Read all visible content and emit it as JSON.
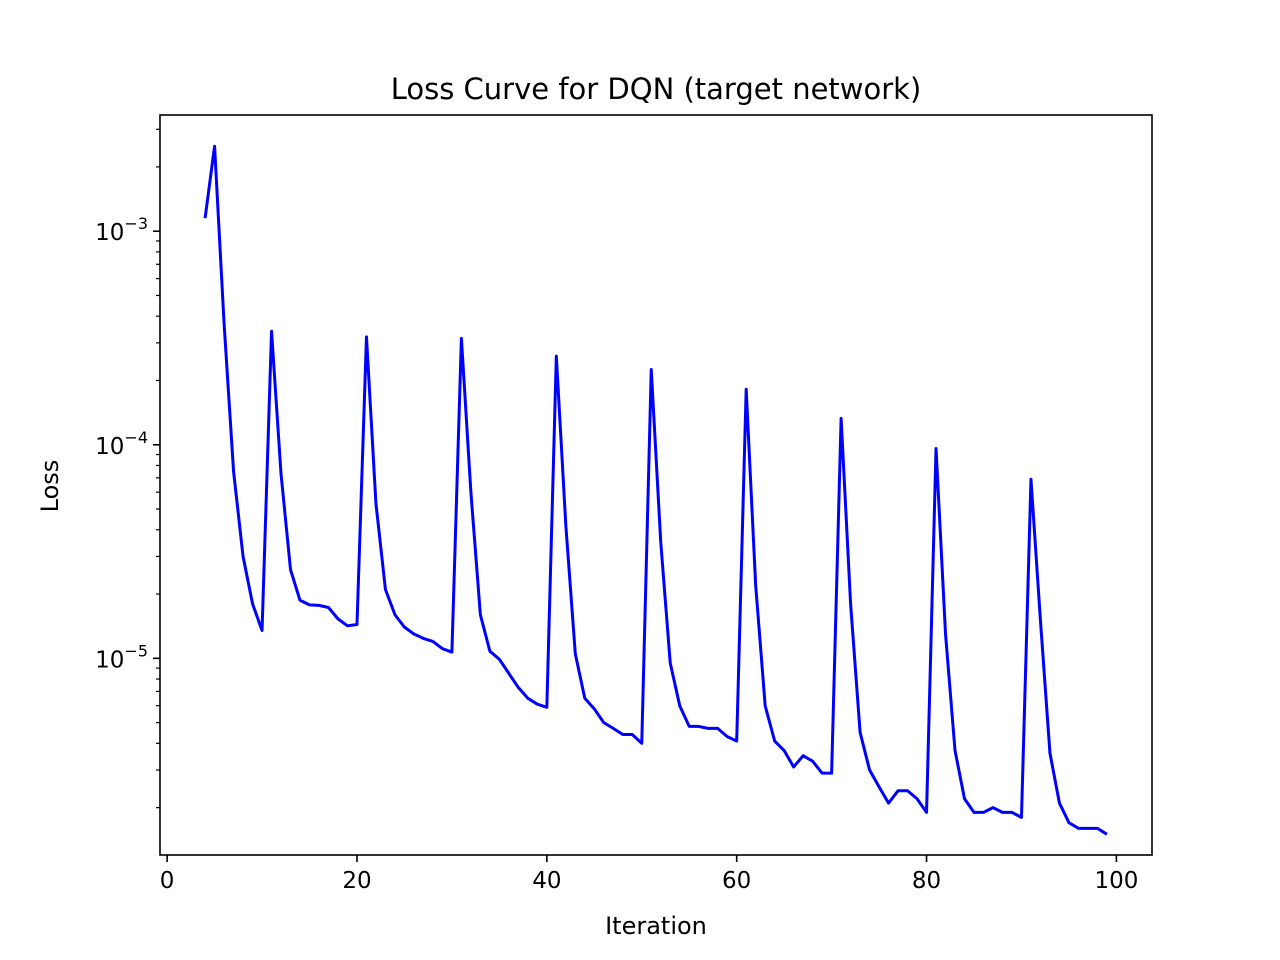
{
  "chart_data": {
    "type": "line",
    "title": "Loss Curve for DQN (target network)",
    "xlabel": "Iteration",
    "ylabel": "Loss",
    "xlim": [
      -0.75,
      103.75
    ],
    "ylim": [
      1.2e-06,
      0.0035
    ],
    "yscale": "log",
    "xticks": [
      0,
      20,
      40,
      60,
      80,
      100
    ],
    "xtick_labels": [
      "0",
      "20",
      "40",
      "60",
      "80",
      "100"
    ],
    "yticks": [
      1e-05,
      0.0001,
      0.001
    ],
    "ytick_labels": [
      {
        "base": "10",
        "exp": "−5"
      },
      {
        "base": "10",
        "exp": "−4"
      },
      {
        "base": "10",
        "exp": "−3"
      }
    ],
    "grid": false,
    "series": [
      {
        "color": "#0000ff",
        "x": [
          4,
          5,
          6,
          7,
          8,
          9,
          10,
          11,
          12,
          13,
          14,
          15,
          16,
          17,
          18,
          19,
          20,
          21,
          22,
          23,
          24,
          25,
          26,
          27,
          28,
          29,
          30,
          31,
          32,
          33,
          34,
          35,
          36,
          37,
          38,
          39,
          40,
          41,
          42,
          43,
          44,
          45,
          46,
          47,
          48,
          49,
          50,
          51,
          52,
          53,
          54,
          55,
          56,
          57,
          58,
          59,
          60,
          61,
          62,
          63,
          64,
          65,
          66,
          67,
          68,
          69,
          70,
          71,
          72,
          73,
          74,
          75,
          76,
          77,
          78,
          79,
          80,
          81,
          82,
          83,
          84,
          85,
          86,
          87,
          88,
          89,
          90,
          91,
          92,
          93,
          94,
          95,
          96,
          97,
          98,
          99
        ],
        "y": [
          0.00115,
          0.0025,
          0.00037,
          7.5e-05,
          3e-05,
          1.8e-05,
          1.35e-05,
          0.00034,
          7.3e-05,
          2.6e-05,
          1.87e-05,
          1.78e-05,
          1.77e-05,
          1.73e-05,
          1.53e-05,
          1.42e-05,
          1.44e-05,
          0.00032,
          5.3e-05,
          2.1e-05,
          1.6e-05,
          1.4e-05,
          1.3e-05,
          1.24e-05,
          1.2e-05,
          1.11e-05,
          1.07e-05,
          0.000315,
          6e-05,
          1.6e-05,
          1.08e-05,
          9.9e-06,
          8.5e-06,
          7.3e-06,
          6.5e-06,
          6.1e-06,
          5.9e-06,
          0.00026,
          4.2e-05,
          1.05e-05,
          6.5e-06,
          5.8e-06,
          5e-06,
          4.7e-06,
          4.4e-06,
          4.4e-06,
          4e-06,
          0.000225,
          3.5e-05,
          9.5e-06,
          6e-06,
          4.8e-06,
          4.8e-06,
          4.7e-06,
          4.7e-06,
          4.3e-06,
          4.1e-06,
          0.000182,
          2.2e-05,
          6e-06,
          4.1e-06,
          3.7e-06,
          3.1e-06,
          3.5e-06,
          3.3e-06,
          2.9e-06,
          2.9e-06,
          0.000133,
          1.8e-05,
          4.5e-06,
          3e-06,
          2.5e-06,
          2.1e-06,
          2.4e-06,
          2.4e-06,
          2.2e-06,
          1.9e-06,
          9.6e-05,
          1.3e-05,
          3.7e-06,
          2.2e-06,
          1.9e-06,
          1.9e-06,
          2e-06,
          1.9e-06,
          1.9e-06,
          1.8e-06,
          6.9e-05,
          1.5e-05,
          3.6e-06,
          2.1e-06,
          1.7e-06,
          1.6e-06,
          1.6e-06,
          1.6e-06,
          1.5e-06
        ]
      }
    ]
  }
}
